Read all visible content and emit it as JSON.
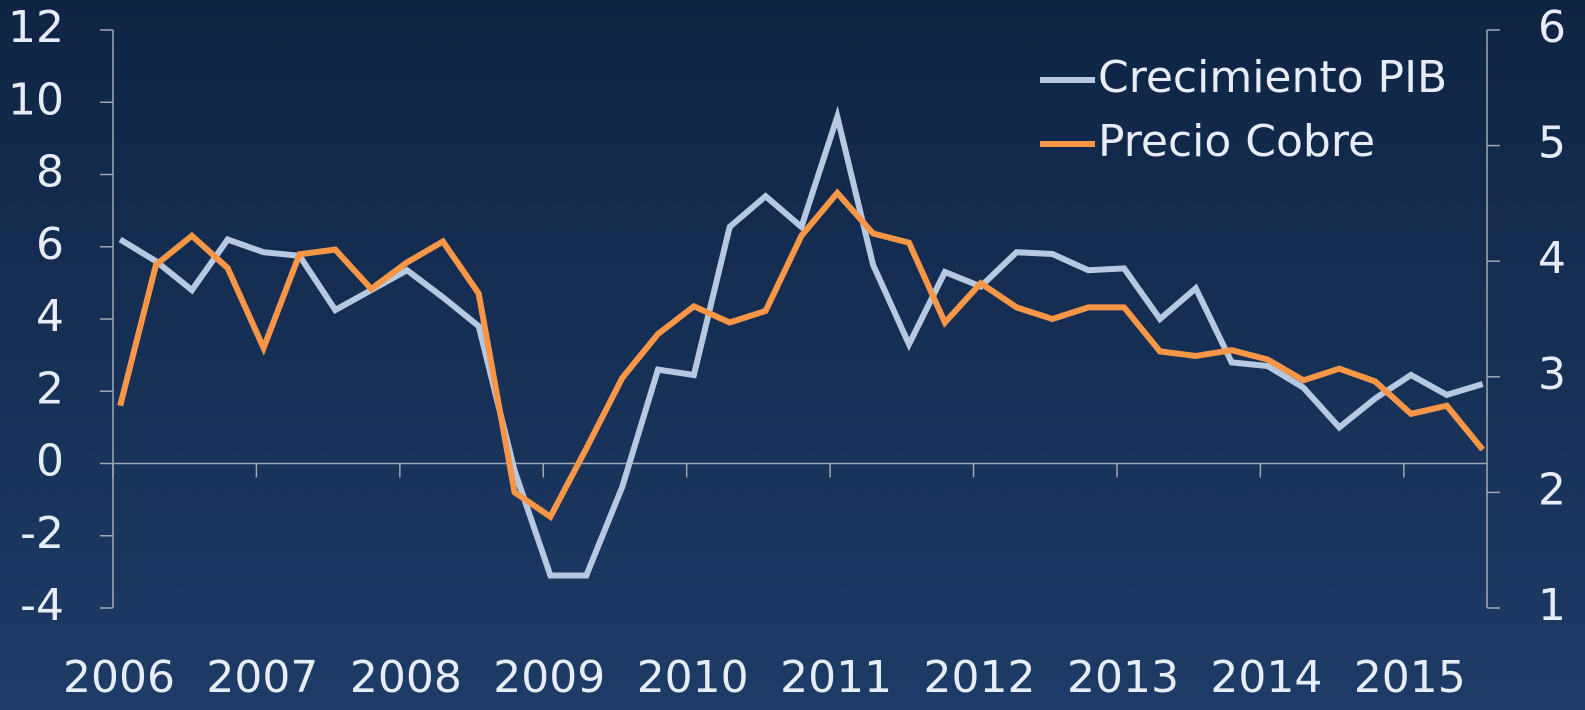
{
  "chart_data": {
    "type": "line",
    "x": [
      2006.05,
      2006.3,
      2006.55,
      2006.8,
      2007.05,
      2007.3,
      2007.55,
      2007.8,
      2008.05,
      2008.3,
      2008.55,
      2008.8,
      2009.05,
      2009.3,
      2009.55,
      2009.8,
      2010.05,
      2010.3,
      2010.55,
      2010.8,
      2011.05,
      2011.3,
      2011.55,
      2011.8,
      2012.05,
      2012.3,
      2012.55,
      2012.8,
      2013.05,
      2013.3,
      2013.55,
      2013.8,
      2014.05,
      2014.3,
      2014.55,
      2014.8,
      2015.05,
      2015.3,
      2015.55
    ],
    "series": [
      {
        "name": "Crecimiento PIB",
        "color": "#b7c9e2",
        "axis": "y",
        "values": [
          6.2,
          5.6,
          4.8,
          6.2,
          5.85,
          5.75,
          4.25,
          4.8,
          5.35,
          4.6,
          3.8,
          -0.2,
          -3.1,
          -3.1,
          -0.65,
          2.6,
          2.45,
          6.55,
          7.4,
          6.55,
          9.6,
          5.5,
          3.3,
          5.3,
          4.9,
          5.85,
          5.8,
          5.35,
          5.4,
          4.0,
          4.85,
          2.8,
          2.7,
          2.1,
          1.0,
          1.8,
          2.45,
          1.9,
          2.2
        ]
      },
      {
        "name": "Precio Cobre",
        "color": "#f79646",
        "axis": "y2",
        "values": [
          2.75,
          3.97,
          4.22,
          3.94,
          3.25,
          4.06,
          4.1,
          3.76,
          3.99,
          4.17,
          3.72,
          2.0,
          1.79,
          2.38,
          2.99,
          3.37,
          3.61,
          3.47,
          3.57,
          4.22,
          4.59,
          4.24,
          4.16,
          3.47,
          3.81,
          3.6,
          3.5,
          3.6,
          3.6,
          3.22,
          3.18,
          3.23,
          3.15,
          2.97,
          3.07,
          2.96,
          2.68,
          2.75,
          2.37
        ]
      }
    ],
    "xlim": [
      2006,
      2015.58
    ],
    "xticks": [
      2006,
      2007,
      2008,
      2009,
      2010,
      2011,
      2012,
      2013,
      2014,
      2015
    ],
    "ylim": [
      -4,
      12
    ],
    "yticks": [
      -4,
      -2,
      0,
      2,
      4,
      6,
      8,
      10,
      12
    ],
    "y2lim": [
      1,
      6
    ],
    "y2ticks": [
      1,
      2,
      3,
      4,
      5,
      6
    ],
    "legend": "top-right"
  }
}
